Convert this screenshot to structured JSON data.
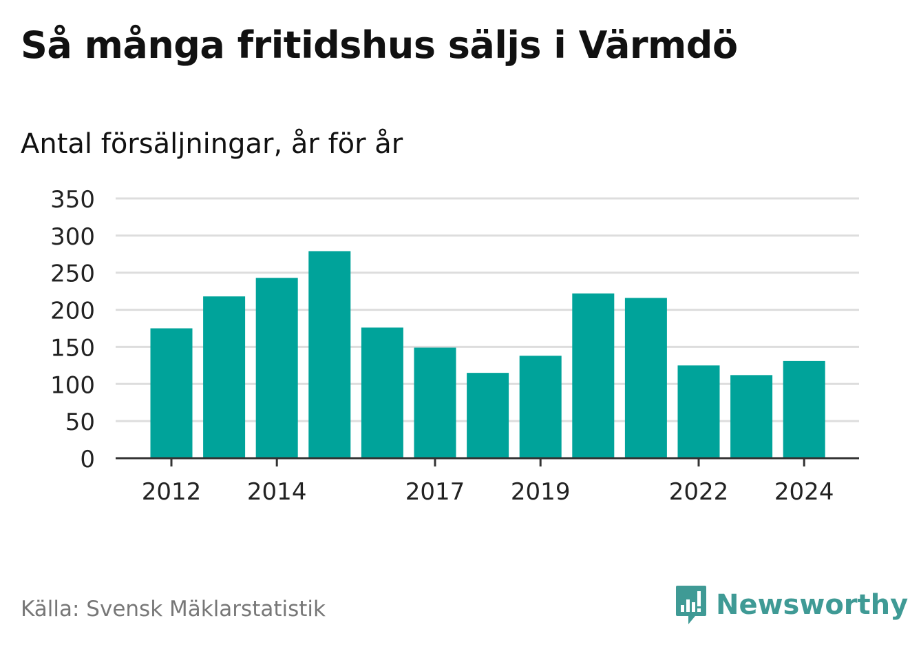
{
  "title": "Så många fritidshus säljs i Värmdö",
  "subtitle": "Antal försäljningar, år för år",
  "source": "Källa: Svensk Mäklarstatistik",
  "brand": {
    "name": "Newsworthy",
    "icon": "newsworthy-logo-icon",
    "color": "#3f9a95"
  },
  "colors": {
    "bar": "#00a39a",
    "grid": "#dddddd",
    "axis": "#333333"
  },
  "chart_data": {
    "type": "bar",
    "categories": [
      "2012",
      "2013",
      "2014",
      "2015",
      "2016",
      "2017",
      "2018",
      "2019",
      "2020",
      "2021",
      "2022",
      "2023",
      "2024"
    ],
    "values": [
      175,
      218,
      243,
      279,
      176,
      149,
      115,
      138,
      222,
      216,
      125,
      112,
      131
    ],
    "x_tick_labels": [
      "2012",
      "2014",
      "2017",
      "2019",
      "2022",
      "2024"
    ],
    "y_ticks": [
      0,
      50,
      100,
      150,
      200,
      250,
      300,
      350
    ],
    "ylim": [
      0,
      350
    ],
    "grid": true,
    "xlabel": "",
    "ylabel": ""
  }
}
